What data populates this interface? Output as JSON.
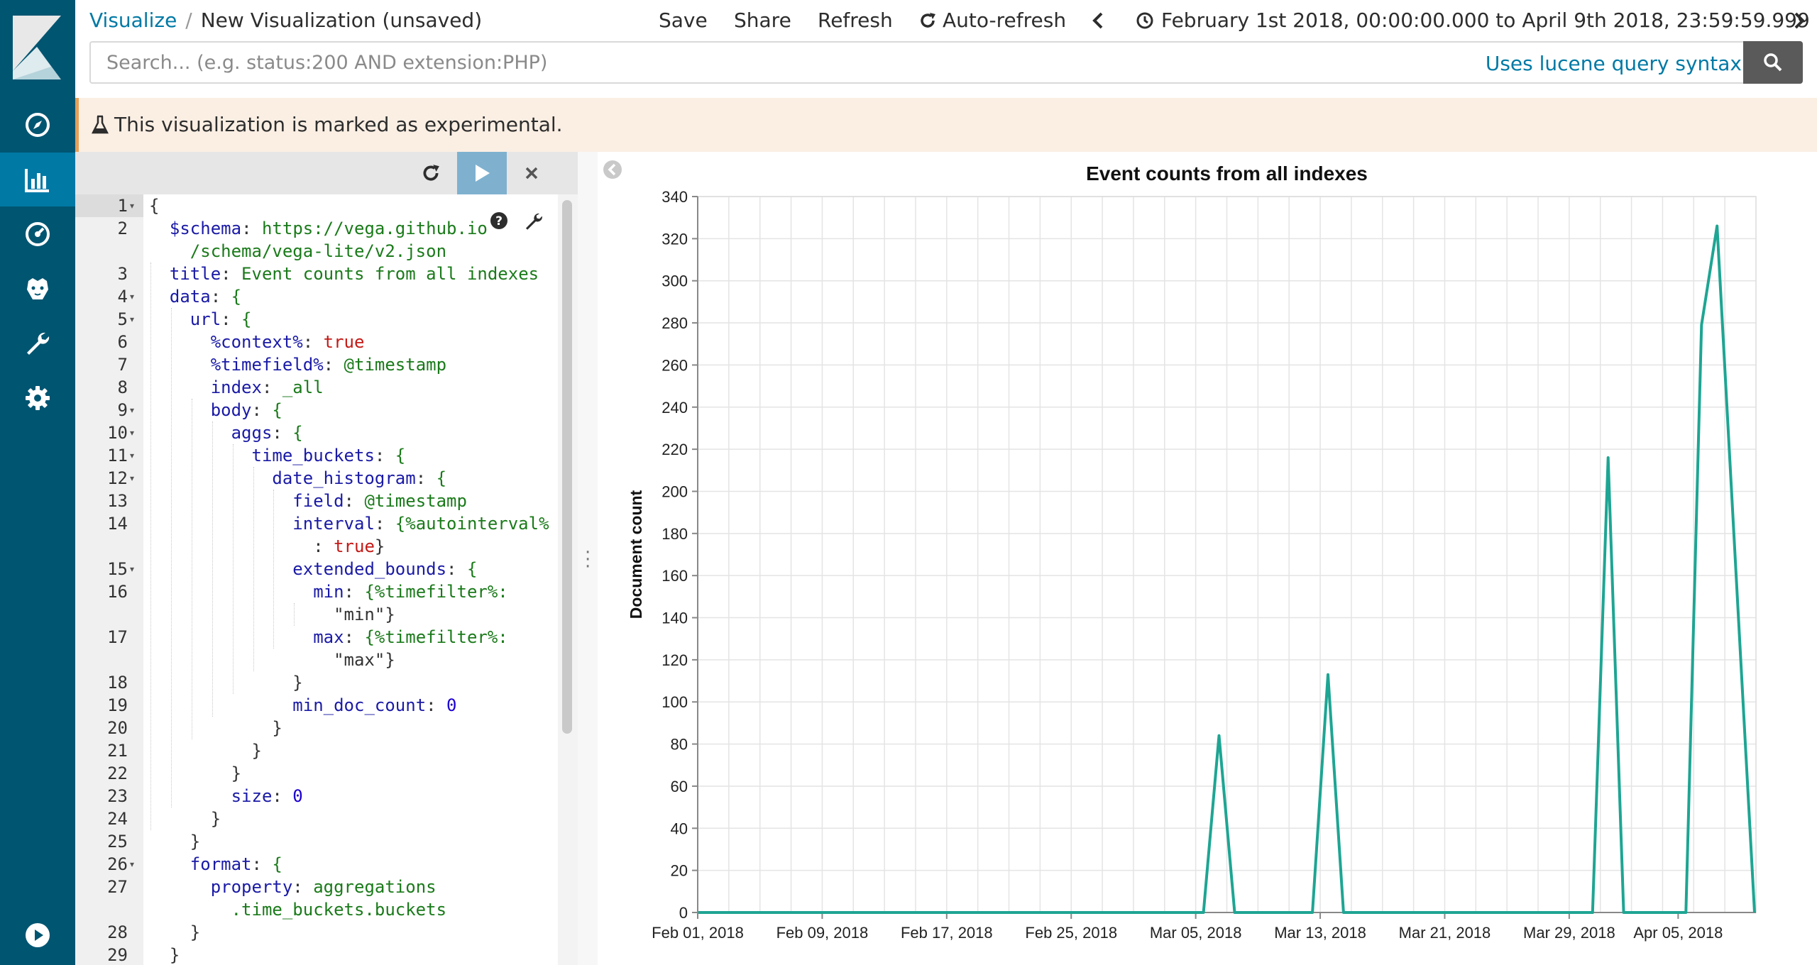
{
  "breadcrumb": {
    "parent": "Visualize",
    "separator": "/",
    "current": "New Visualization (unsaved)"
  },
  "topnav": {
    "save": "Save",
    "share": "Share",
    "refresh": "Refresh",
    "auto_refresh": "Auto-refresh",
    "time_range": "February 1st 2018, 00:00:00.000 to April 9th 2018, 23:59:59.999"
  },
  "search": {
    "placeholder": "Search... (e.g. status:200 AND extension:PHP)",
    "value": "",
    "syntax_link": "Uses lucene query syntax"
  },
  "banner": {
    "text": "This visualization is marked as experimental."
  },
  "sidebar": {
    "items": [
      "discover-icon",
      "visualize-icon",
      "dashboard-icon",
      "timelion-icon",
      "dev-tools-icon",
      "management-icon"
    ],
    "active": "visualize-icon",
    "bottom": "collapse-icon"
  },
  "editor": {
    "line_numbers": [
      "1",
      "2",
      "",
      "3",
      "4",
      "5",
      "6",
      "7",
      "8",
      "9",
      "10",
      "11",
      "12",
      "13",
      "14",
      "",
      "15",
      "16",
      "",
      "17",
      "",
      "18",
      "19",
      "20",
      "21",
      "22",
      "23",
      "24",
      "25",
      "26",
      "27",
      "",
      "28",
      "29"
    ],
    "lines": [
      "{",
      "  $schema: https://vega.github.io",
      "    /schema/vega-lite/v2.json",
      "  title: Event counts from all indexes",
      "  data: {",
      "    url: {",
      "      %context%: true",
      "      %timefield%: @timestamp",
      "      index: _all",
      "      body: {",
      "        aggs: {",
      "          time_buckets: {",
      "            date_histogram: {",
      "              field: @timestamp",
      "              interval: {%autointerval%",
      "                : true}",
      "              extended_bounds: {",
      "                min: {%timefilter%:",
      "                  \"min\"}",
      "                max: {%timefilter%:",
      "                  \"max\"}",
      "              }",
      "              min_doc_count: 0",
      "            }",
      "          }",
      "        }",
      "        size: 0",
      "      }",
      "    }",
      "    format: {",
      "      property: aggregations",
      "        .time_buckets.buckets",
      "    }",
      "  }"
    ]
  },
  "chart_data": {
    "type": "line",
    "title": "Event counts from all indexes",
    "xlabel": "",
    "ylabel": "Document count",
    "ylim": [
      0,
      340
    ],
    "yticks": [
      0,
      20,
      40,
      60,
      80,
      100,
      120,
      140,
      160,
      180,
      200,
      220,
      240,
      260,
      280,
      300,
      320,
      340
    ],
    "xlim": [
      "2018-02-01",
      "2018-04-09"
    ],
    "xticks": [
      "Feb 01, 2018",
      "Feb 09, 2018",
      "Feb 17, 2018",
      "Feb 25, 2018",
      "Mar 05, 2018",
      "Mar 13, 2018",
      "Mar 21, 2018",
      "Mar 29, 2018",
      "Apr 05, 2018"
    ],
    "color": "#1ea593",
    "grid": true,
    "x": [
      "2018-02-01",
      "2018-03-05",
      "2018-03-06",
      "2018-03-07",
      "2018-03-12",
      "2018-03-13",
      "2018-03-14",
      "2018-03-30",
      "2018-03-31",
      "2018-04-01",
      "2018-04-05",
      "2018-04-06",
      "2018-04-07",
      "2018-04-09"
    ],
    "values": [
      0,
      0,
      84,
      0,
      0,
      113,
      0,
      0,
      216,
      0,
      0,
      279,
      326,
      0
    ]
  }
}
